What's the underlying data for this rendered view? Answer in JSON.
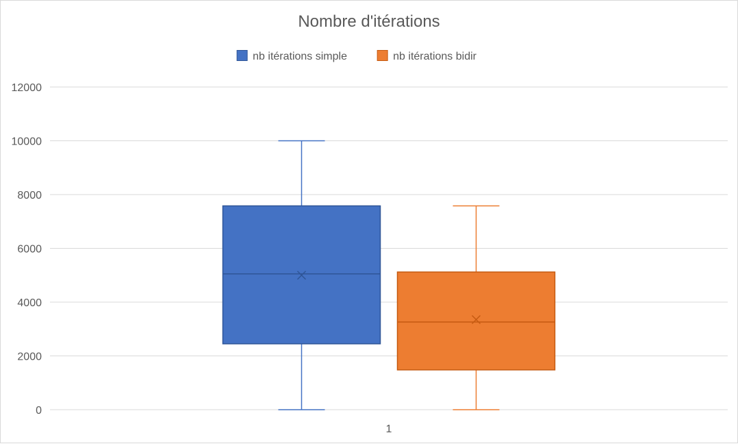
{
  "chart_data": {
    "type": "box",
    "title": "Nombre d'itérations",
    "categories": [
      "1"
    ],
    "ylim": [
      0,
      12000
    ],
    "yticks": [
      0,
      2000,
      4000,
      6000,
      8000,
      10000,
      12000
    ],
    "grid": true,
    "legend_position": "top",
    "series": [
      {
        "name": "nb itérations simple",
        "color": "#4472C4",
        "edge_color": "#2F5597",
        "min": 0,
        "q1": 2450,
        "median": 5050,
        "q3": 7580,
        "max": 10000,
        "mean": 5000
      },
      {
        "name": "nb itérations bidir",
        "color": "#ED7D31",
        "edge_color": "#C55A11",
        "min": 0,
        "q1": 1480,
        "median": 3260,
        "q3": 5120,
        "max": 7580,
        "mean": 3350
      }
    ]
  }
}
